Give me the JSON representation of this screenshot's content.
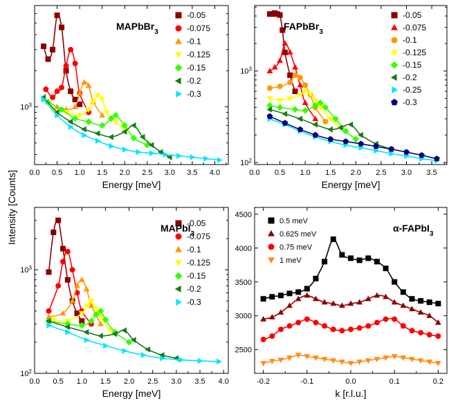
{
  "figure": {
    "shared_ylabel": "Intensity [Counts]"
  },
  "chart_data": [
    {
      "panel": "top-left",
      "type": "scatter",
      "title": "MAPbBr3",
      "title_main": "MAPbBr",
      "title_sub": "3",
      "xlabel": "Energy [meV]",
      "xlim": [
        0,
        4.3
      ],
      "ylim": [
        330,
        7000
      ],
      "yscale": "log",
      "xticks": [
        "0.0",
        "0.5",
        "1.0",
        "1.5",
        "2.0",
        "2.5",
        "3.0",
        "3.5",
        "4.0"
      ],
      "yticks": [
        {
          "value": 1000,
          "label": "10",
          "exp": "3"
        }
      ],
      "legend_position": "top-right",
      "series": [
        {
          "name": "-0.05",
          "color": "#8b0000",
          "marker": "square",
          "x": [
            0.2,
            0.3,
            0.4,
            0.5,
            0.6,
            0.7,
            0.8,
            0.9,
            1.0
          ],
          "y": [
            3200,
            2500,
            3000,
            5800,
            4600,
            2000,
            1350,
            1150,
            1050
          ]
        },
        {
          "name": "-0.075",
          "color": "#ff0000",
          "marker": "circle",
          "x": [
            0.25,
            0.4,
            0.5,
            0.6,
            0.7,
            0.8,
            0.9,
            1.0,
            1.2
          ],
          "y": [
            1400,
            1200,
            1350,
            1450,
            2200,
            3000,
            2300,
            1300,
            900
          ]
        },
        {
          "name": "-0.1",
          "color": "#ff9900",
          "marker": "triangle-up",
          "x": [
            0.3,
            0.5,
            0.7,
            0.9,
            1.0,
            1.1,
            1.2,
            1.3,
            1.5
          ],
          "y": [
            1100,
            1000,
            950,
            1000,
            1300,
            1600,
            1500,
            1100,
            850
          ]
        },
        {
          "name": "-0.125",
          "color": "#ffff00",
          "marker": "triangle-down",
          "x": [
            0.4,
            0.7,
            1.0,
            1.2,
            1.3,
            1.4,
            1.5,
            1.6,
            1.8,
            2.0
          ],
          "y": [
            950,
            900,
            850,
            950,
            1100,
            1250,
            1150,
            900,
            750,
            650
          ]
        },
        {
          "name": "-0.15",
          "color": "#33ff00",
          "marker": "diamond",
          "x": [
            0.3,
            0.6,
            0.9,
            1.2,
            1.5,
            1.7,
            1.8,
            2.0,
            2.2,
            2.5
          ],
          "y": [
            1100,
            950,
            800,
            750,
            700,
            800,
            850,
            700,
            550,
            480
          ]
        },
        {
          "name": "-0.2",
          "color": "#1a7a1a",
          "marker": "triangle-left",
          "x": [
            0.2,
            0.5,
            0.8,
            1.1,
            1.4,
            1.7,
            2.0,
            2.2,
            2.4,
            2.6,
            2.8,
            3.0
          ],
          "y": [
            1200,
            900,
            750,
            650,
            600,
            560,
            620,
            700,
            560,
            480,
            420,
            380
          ]
        },
        {
          "name": "-0.3",
          "color": "#00e5ff",
          "marker": "triangle-right",
          "x": [
            0.2,
            0.5,
            0.8,
            1.1,
            1.4,
            1.7,
            2.0,
            2.3,
            2.6,
            2.9,
            3.2,
            3.5,
            3.8,
            4.1
          ],
          "y": [
            1150,
            850,
            680,
            580,
            520,
            470,
            440,
            420,
            410,
            400,
            390,
            380,
            370,
            360
          ]
        }
      ]
    },
    {
      "panel": "top-right",
      "type": "scatter",
      "title": "FAPbBr3",
      "title_main": "FAPbBr",
      "title_sub": "3",
      "xlabel": "Energy [meV]",
      "xlim": [
        0,
        3.8
      ],
      "ylim": [
        95,
        5200
      ],
      "yscale": "log",
      "xticks": [
        "0.0",
        "0.5",
        "1.0",
        "1.5",
        "2.0",
        "2.5",
        "3.0",
        "3.5"
      ],
      "yticks": [
        {
          "value": 1000,
          "label": "10",
          "exp": "3"
        },
        {
          "value": 100,
          "label": "10",
          "exp": "2"
        }
      ],
      "legend_position": "top-right",
      "series": [
        {
          "name": "-0.05",
          "color": "#8b0000",
          "marker": "square",
          "x": [
            0.3,
            0.35,
            0.4,
            0.45,
            0.5,
            0.55,
            0.6,
            0.7,
            0.8
          ],
          "y": [
            4200,
            4200,
            4300,
            4200,
            4100,
            2800,
            1600,
            900,
            600
          ]
        },
        {
          "name": "-0.075",
          "color": "#ff0000",
          "marker": "triangle-up",
          "x": [
            0.3,
            0.4,
            0.5,
            0.6,
            0.7,
            0.8,
            0.9,
            1.0,
            1.2
          ],
          "y": [
            1000,
            1100,
            1300,
            2000,
            1600,
            1100,
            700,
            450,
            300
          ]
        },
        {
          "name": "-0.1",
          "color": "#ff9900",
          "marker": "circle",
          "x": [
            0.3,
            0.5,
            0.7,
            0.8,
            0.9,
            1.0,
            1.1,
            1.2,
            1.4
          ],
          "y": [
            650,
            680,
            750,
            900,
            850,
            700,
            550,
            400,
            280
          ]
        },
        {
          "name": "-0.125",
          "color": "#ffff00",
          "marker": "triangle-down",
          "x": [
            0.3,
            0.5,
            0.7,
            0.9,
            1.0,
            1.1,
            1.2,
            1.3,
            1.5,
            1.7
          ],
          "y": [
            500,
            480,
            500,
            550,
            600,
            560,
            480,
            400,
            300,
            240
          ]
        },
        {
          "name": "-0.15",
          "color": "#33ff00",
          "marker": "diamond",
          "x": [
            0.3,
            0.5,
            0.8,
            1.0,
            1.2,
            1.3,
            1.4,
            1.6,
            1.8,
            2.0
          ],
          "y": [
            420,
            400,
            380,
            370,
            420,
            450,
            400,
            300,
            220,
            180
          ]
        },
        {
          "name": "-0.2",
          "color": "#1a7a1a",
          "marker": "triangle-left",
          "x": [
            0.3,
            0.6,
            0.9,
            1.2,
            1.5,
            1.7,
            1.9,
            2.1,
            2.4,
            2.7
          ],
          "y": [
            380,
            340,
            300,
            260,
            230,
            240,
            260,
            200,
            160,
            140
          ]
        },
        {
          "name": "-0.25",
          "color": "#00e5ff",
          "marker": "triangle-right",
          "x": [
            0.3,
            0.6,
            0.9,
            1.2,
            1.5,
            1.8,
            2.1,
            2.4,
            2.7,
            3.0,
            3.3,
            3.6
          ],
          "y": [
            300,
            260,
            220,
            190,
            170,
            155,
            145,
            135,
            125,
            118,
            110,
            105
          ]
        },
        {
          "name": "-0.3",
          "color": "#00007a",
          "marker": "pentagon",
          "x": [
            0.3,
            0.6,
            0.9,
            1.2,
            1.5,
            1.8,
            2.1,
            2.4,
            2.7,
            3.0,
            3.3,
            3.6
          ],
          "y": [
            320,
            270,
            230,
            200,
            180,
            170,
            160,
            150,
            140,
            130,
            120,
            110
          ]
        }
      ]
    },
    {
      "panel": "bottom-left",
      "type": "scatter",
      "title": "MAPbI3",
      "title_main": "MAPbI",
      "title_sub": "3",
      "xlabel": "Energy [meV]",
      "xlim": [
        0,
        4.1
      ],
      "ylim": [
        100,
        4000
      ],
      "yscale": "log",
      "xticks": [
        "0.0",
        "0.5",
        "1.0",
        "1.5",
        "2.0",
        "2.5",
        "3.0",
        "3.5",
        "4.0"
      ],
      "yticks": [
        {
          "value": 1000,
          "label": "10",
          "exp": "3"
        },
        {
          "value": 100,
          "label": "10",
          "exp": "2"
        }
      ],
      "legend_position": "top-right",
      "series": [
        {
          "name": "-0.05",
          "color": "#8b0000",
          "marker": "square",
          "x": [
            0.3,
            0.4,
            0.5,
            0.6,
            0.7,
            0.8,
            0.9,
            1.0
          ],
          "y": [
            950,
            2300,
            3000,
            1600,
            800,
            500,
            380,
            320
          ]
        },
        {
          "name": "-0.075",
          "color": "#ff0000",
          "marker": "circle",
          "x": [
            0.3,
            0.5,
            0.6,
            0.7,
            0.8,
            0.9,
            1.0,
            1.2
          ],
          "y": [
            400,
            700,
            1200,
            1500,
            1000,
            600,
            400,
            300
          ]
        },
        {
          "name": "-0.1",
          "color": "#ff9900",
          "marker": "triangle-up",
          "x": [
            0.3,
            0.6,
            0.8,
            0.9,
            1.0,
            1.1,
            1.2,
            1.4
          ],
          "y": [
            350,
            380,
            500,
            700,
            800,
            650,
            450,
            300
          ]
        },
        {
          "name": "-0.125",
          "color": "#ffff00",
          "marker": "triangle-down",
          "x": [
            0.4,
            0.7,
            1.0,
            1.1,
            1.2,
            1.3,
            1.4,
            1.6
          ],
          "y": [
            330,
            320,
            380,
            450,
            500,
            420,
            350,
            260
          ]
        },
        {
          "name": "-0.15",
          "color": "#33ff00",
          "marker": "diamond",
          "x": [
            0.3,
            0.7,
            1.0,
            1.2,
            1.3,
            1.4,
            1.5,
            1.7,
            2.0
          ],
          "y": [
            320,
            300,
            290,
            320,
            370,
            400,
            330,
            250,
            200
          ]
        },
        {
          "name": "-0.2",
          "color": "#1a7a1a",
          "marker": "triangle-left",
          "x": [
            0.3,
            0.7,
            1.1,
            1.4,
            1.7,
            1.9,
            2.1,
            2.4,
            2.7,
            3.0
          ],
          "y": [
            320,
            280,
            250,
            230,
            240,
            260,
            210,
            170,
            150,
            140
          ]
        },
        {
          "name": "-0.3",
          "color": "#00e5ff",
          "marker": "triangle-right",
          "x": [
            0.3,
            0.7,
            1.1,
            1.5,
            1.9,
            2.3,
            2.7,
            3.1,
            3.5,
            3.9
          ],
          "y": [
            290,
            250,
            210,
            185,
            165,
            150,
            140,
            135,
            132,
            130
          ]
        }
      ]
    },
    {
      "panel": "bottom-right",
      "type": "scatter",
      "title": "α-FAPbI3",
      "title_main": "α-FAPbI",
      "title_sub": "3",
      "xlabel": "k [r.l.u.]",
      "xlim": [
        -0.22,
        0.22
      ],
      "ylim": [
        2150,
        4600
      ],
      "yscale": "linear",
      "xticks": [
        "-0.2",
        "-0.1",
        "0.0",
        "0.1",
        "0.2"
      ],
      "xtick_values": [
        -0.2,
        -0.1,
        0,
        0.1,
        0.2
      ],
      "yticks": [
        "2500",
        "3000",
        "3500",
        "4000",
        "4500"
      ],
      "ytick_values": [
        2500,
        3000,
        3500,
        4000,
        4500
      ],
      "legend_position": "top-left",
      "series": [
        {
          "name": "0.5 meV",
          "color": "#000000",
          "marker": "square",
          "x": [
            -0.2,
            -0.18,
            -0.16,
            -0.14,
            -0.12,
            -0.1,
            -0.08,
            -0.06,
            -0.04,
            -0.02,
            0,
            0.02,
            0.04,
            0.06,
            0.08,
            0.1,
            0.12,
            0.14,
            0.16,
            0.18,
            0.2
          ],
          "y": [
            3250,
            3280,
            3300,
            3330,
            3350,
            3400,
            3550,
            3800,
            4130,
            3900,
            3850,
            3820,
            3850,
            3800,
            3700,
            3500,
            3350,
            3250,
            3220,
            3200,
            3180
          ]
        },
        {
          "name": "0.625 meV",
          "color": "#8b0000",
          "marker": "triangle-up",
          "x": [
            -0.2,
            -0.18,
            -0.16,
            -0.14,
            -0.12,
            -0.1,
            -0.08,
            -0.06,
            -0.04,
            -0.02,
            0,
            0.02,
            0.04,
            0.06,
            0.08,
            0.1,
            0.12,
            0.14,
            0.16,
            0.18,
            0.2
          ],
          "y": [
            2950,
            2980,
            3050,
            3150,
            3250,
            3300,
            3250,
            3200,
            3180,
            3150,
            3180,
            3200,
            3250,
            3300,
            3280,
            3200,
            3150,
            3100,
            3050,
            3000,
            2900
          ]
        },
        {
          "name": "0.75 meV",
          "color": "#ff0000",
          "marker": "circle",
          "x": [
            -0.2,
            -0.18,
            -0.16,
            -0.14,
            -0.12,
            -0.1,
            -0.08,
            -0.06,
            -0.04,
            -0.02,
            0,
            0.02,
            0.04,
            0.06,
            0.08,
            0.1,
            0.12,
            0.14,
            0.16,
            0.18,
            0.2
          ],
          "y": [
            2650,
            2700,
            2800,
            2850,
            2900,
            2950,
            2900,
            2850,
            2800,
            2780,
            2800,
            2820,
            2850,
            2900,
            2950,
            2950,
            2850,
            2780,
            2750,
            2720,
            2700
          ]
        },
        {
          "name": "1 meV",
          "color": "#ff8c1a",
          "marker": "triangle-down",
          "x": [
            -0.2,
            -0.18,
            -0.16,
            -0.14,
            -0.12,
            -0.1,
            -0.08,
            -0.06,
            -0.04,
            -0.02,
            0,
            0.02,
            0.04,
            0.06,
            0.08,
            0.1,
            0.12,
            0.14,
            0.16,
            0.18,
            0.2
          ],
          "y": [
            2300,
            2330,
            2350,
            2380,
            2420,
            2400,
            2380,
            2360,
            2340,
            2320,
            2300,
            2320,
            2340,
            2360,
            2380,
            2400,
            2380,
            2360,
            2340,
            2320,
            2300
          ]
        }
      ]
    }
  ]
}
